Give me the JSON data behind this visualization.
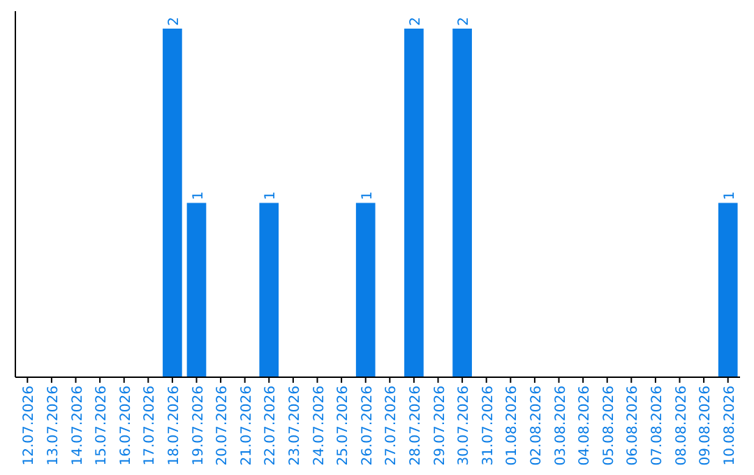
{
  "chart_data": {
    "type": "bar",
    "categories": [
      "12.07.2026",
      "13.07.2026",
      "14.07.2026",
      "15.07.2026",
      "16.07.2026",
      "17.07.2026",
      "18.07.2026",
      "19.07.2026",
      "20.07.2026",
      "21.07.2026",
      "22.07.2026",
      "23.07.2026",
      "24.07.2026",
      "25.07.2026",
      "26.07.2026",
      "27.07.2026",
      "28.07.2026",
      "29.07.2026",
      "30.07.2026",
      "31.07.2026",
      "01.08.2026",
      "02.08.2026",
      "03.08.2026",
      "04.08.2026",
      "05.08.2026",
      "06.08.2026",
      "07.08.2026",
      "08.08.2026",
      "09.08.2026",
      "10.08.2026"
    ],
    "values": [
      0,
      0,
      0,
      0,
      0,
      0,
      2,
      1,
      0,
      0,
      1,
      0,
      0,
      0,
      1,
      0,
      2,
      0,
      2,
      0,
      0,
      0,
      0,
      0,
      0,
      0,
      0,
      0,
      0,
      1
    ],
    "value_labels": [
      null,
      null,
      null,
      null,
      null,
      null,
      "2",
      "1",
      null,
      null,
      "1",
      null,
      null,
      null,
      "1",
      null,
      "2",
      null,
      "2",
      null,
      null,
      null,
      null,
      null,
      null,
      null,
      null,
      null,
      null,
      "1"
    ],
    "color": "#0a7de6",
    "ylim": [
      0,
      2.1
    ],
    "tick_labels": "x"
  }
}
